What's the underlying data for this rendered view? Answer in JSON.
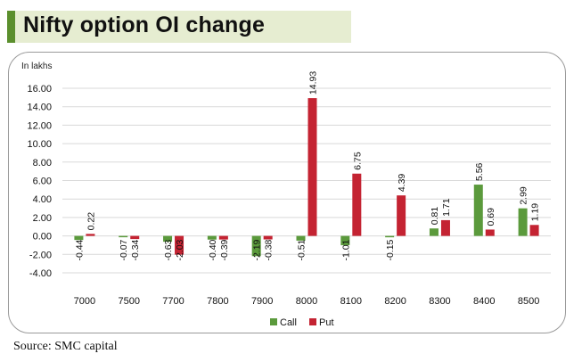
{
  "header": {
    "title": "Nifty option OI change"
  },
  "source": "Source: SMC capital",
  "colors": {
    "call": "#5b9a3c",
    "put": "#c42332",
    "grid": "#d9d9d9"
  },
  "chart_data": {
    "type": "bar",
    "title": "Nifty option OI change",
    "ylabel": "In lakhs",
    "xlabel": "",
    "ylim": [
      -4,
      16
    ],
    "yticks": [
      "16.00",
      "14.00",
      "12.00",
      "10.00",
      "8.00",
      "6.00",
      "4.00",
      "2.00",
      "0.00",
      "-2.00",
      "-4.00"
    ],
    "categories": [
      "7000",
      "7500",
      "7700",
      "7800",
      "7900",
      "8000",
      "8100",
      "8200",
      "8300",
      "8400",
      "8500"
    ],
    "series": [
      {
        "name": "Call",
        "values": [
          -0.44,
          -0.07,
          -0.63,
          -0.4,
          -2.19,
          -0.51,
          -1.01,
          -0.15,
          0.81,
          5.56,
          2.99
        ],
        "labels": [
          "-0.44",
          "-0.07",
          "-0.63",
          "-0.40",
          "-2.19",
          "-0.51",
          "-1.01",
          "-0.15",
          "0.81",
          "5.56",
          "2.99"
        ]
      },
      {
        "name": "Put",
        "values": [
          0.22,
          -0.34,
          -2.03,
          -0.39,
          -0.38,
          14.93,
          6.75,
          4.39,
          1.71,
          0.69,
          1.19
        ],
        "labels": [
          "0.22",
          "-0.34",
          "-2.03",
          "-0.39",
          "-0.38",
          "14.93",
          "6.75",
          "4.39",
          "1.71",
          "0.69",
          "1.19"
        ]
      }
    ],
    "grid": true,
    "legend": "bottom-center"
  }
}
